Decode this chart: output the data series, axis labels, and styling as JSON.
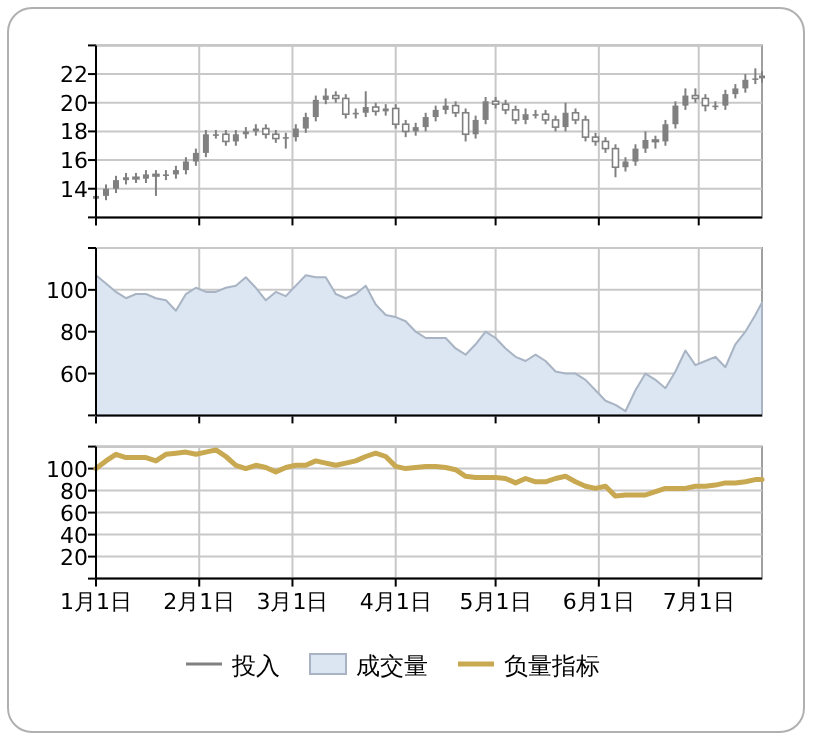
{
  "chart_data": [
    {
      "type": "candlestick",
      "x": [
        "--01-01",
        "--01-04",
        "--01-07",
        "--01-10",
        "--01-13",
        "--01-16",
        "--01-19",
        "--01-22",
        "--01-25",
        "--01-28",
        "--01-31",
        "--02-03",
        "--02-06",
        "--02-09",
        "--02-12",
        "--02-15",
        "--02-18",
        "--02-21",
        "--02-24",
        "--02-27",
        "--03-02",
        "--03-05",
        "--03-08",
        "--03-11",
        "--03-14",
        "--03-17",
        "--03-20",
        "--03-23",
        "--03-26",
        "--03-29",
        "--04-01",
        "--04-04",
        "--04-07",
        "--04-10",
        "--04-13",
        "--04-16",
        "--04-19",
        "--04-22",
        "--04-25",
        "--04-28",
        "--05-01",
        "--05-04",
        "--05-07",
        "--05-10",
        "--05-13",
        "--05-16",
        "--05-19",
        "--05-22",
        "--05-25",
        "--05-28",
        "--05-31",
        "--06-03",
        "--06-06",
        "--06-09",
        "--06-12",
        "--06-15",
        "--06-18",
        "--06-21",
        "--06-24",
        "--06-27",
        "--06-30",
        "--07-03",
        "--07-06",
        "--07-09",
        "--07-12",
        "--07-15",
        "--07-18",
        "--07-20"
      ],
      "series": [
        {
          "name": "投入",
          "color": "#808080",
          "ohlc": [
            [
              13.3,
              13.8,
              13.0,
              13.5
            ],
            [
              13.5,
              14.3,
              13.2,
              14.0
            ],
            [
              14.0,
              14.9,
              13.7,
              14.6
            ],
            [
              14.6,
              15.1,
              14.3,
              14.8
            ],
            [
              14.8,
              15.1,
              14.4,
              14.7
            ],
            [
              14.7,
              15.3,
              14.4,
              15.0
            ],
            [
              15.0,
              15.3,
              13.5,
              14.9
            ],
            [
              14.9,
              15.3,
              14.6,
              15.0
            ],
            [
              15.0,
              15.6,
              14.7,
              15.3
            ],
            [
              15.3,
              16.2,
              15.0,
              15.9
            ],
            [
              15.9,
              16.8,
              15.6,
              16.5
            ],
            [
              16.5,
              18.1,
              16.2,
              17.8
            ],
            [
              17.8,
              18.1,
              17.5,
              17.8
            ],
            [
              17.8,
              18.1,
              17.0,
              17.3
            ],
            [
              17.3,
              18.1,
              17.0,
              17.8
            ],
            [
              17.8,
              18.3,
              17.5,
              18.0
            ],
            [
              18.0,
              18.5,
              17.7,
              18.2
            ],
            [
              18.2,
              18.5,
              17.5,
              17.8
            ],
            [
              17.8,
              18.1,
              17.2,
              17.5
            ],
            [
              17.5,
              17.9,
              16.8,
              17.6
            ],
            [
              17.6,
              18.5,
              17.3,
              18.2
            ],
            [
              18.2,
              19.3,
              17.9,
              19.0
            ],
            [
              19.0,
              20.5,
              18.7,
              20.2
            ],
            [
              20.2,
              21.0,
              19.9,
              20.5
            ],
            [
              20.5,
              20.8,
              20.0,
              20.3
            ],
            [
              20.3,
              20.6,
              18.9,
              19.2
            ],
            [
              19.2,
              19.6,
              18.9,
              19.3
            ],
            [
              19.3,
              20.8,
              19.0,
              19.7
            ],
            [
              19.7,
              20.0,
              19.1,
              19.4
            ],
            [
              19.4,
              19.9,
              19.1,
              19.6
            ],
            [
              19.6,
              19.9,
              18.2,
              18.5
            ],
            [
              18.5,
              18.8,
              17.6,
              18.0
            ],
            [
              18.0,
              18.6,
              17.7,
              18.3
            ],
            [
              18.3,
              19.3,
              18.0,
              19.0
            ],
            [
              19.0,
              19.8,
              18.7,
              19.5
            ],
            [
              19.5,
              20.3,
              19.2,
              19.8
            ],
            [
              19.8,
              20.1,
              19.0,
              19.3
            ],
            [
              19.3,
              19.6,
              17.3,
              17.8
            ],
            [
              17.8,
              19.1,
              17.5,
              18.8
            ],
            [
              18.8,
              20.4,
              18.5,
              20.1
            ],
            [
              20.1,
              20.4,
              19.6,
              19.9
            ],
            [
              19.9,
              20.2,
              19.2,
              19.5
            ],
            [
              19.5,
              19.8,
              18.5,
              18.8
            ],
            [
              18.8,
              19.6,
              18.5,
              19.2
            ],
            [
              19.2,
              19.5,
              18.9,
              19.2
            ],
            [
              19.2,
              19.5,
              18.5,
              18.8
            ],
            [
              18.8,
              19.1,
              18.0,
              18.3
            ],
            [
              18.3,
              20.0,
              18.0,
              19.3
            ],
            [
              19.3,
              19.6,
              18.5,
              18.8
            ],
            [
              18.8,
              19.1,
              17.3,
              17.6
            ],
            [
              17.6,
              17.9,
              17.0,
              17.3
            ],
            [
              17.3,
              17.6,
              16.5,
              16.8
            ],
            [
              16.8,
              17.1,
              14.8,
              15.5
            ],
            [
              15.5,
              16.2,
              15.2,
              15.9
            ],
            [
              15.9,
              17.1,
              15.6,
              16.8
            ],
            [
              16.8,
              18.0,
              16.5,
              17.4
            ],
            [
              17.4,
              17.7,
              16.8,
              17.3
            ],
            [
              17.3,
              18.8,
              17.0,
              18.5
            ],
            [
              18.5,
              20.1,
              18.2,
              19.8
            ],
            [
              19.8,
              21.0,
              19.5,
              20.5
            ],
            [
              20.5,
              21.0,
              20.0,
              20.3
            ],
            [
              20.3,
              20.6,
              19.4,
              19.8
            ],
            [
              19.8,
              20.1,
              19.5,
              19.8
            ],
            [
              19.8,
              20.9,
              19.5,
              20.6
            ],
            [
              20.6,
              21.3,
              20.3,
              21.0
            ],
            [
              21.0,
              22.0,
              20.7,
              21.6
            ],
            [
              21.6,
              22.4,
              21.3,
              21.7
            ],
            [
              21.7,
              22.2,
              21.4,
              21.9
            ]
          ]
        }
      ],
      "xlim": [
        "--01-01",
        "--07-20"
      ],
      "ylim": [
        12,
        24
      ],
      "yticks": [
        {
          "value": 12,
          "label": null
        },
        14,
        16,
        18,
        20,
        22,
        {
          "value": 24,
          "label": null
        }
      ],
      "grid": true,
      "tick_labels": "y",
      "legend": "bottom"
    },
    {
      "type": "area",
      "x": [
        "--01-01",
        "--01-04",
        "--01-07",
        "--01-10",
        "--01-13",
        "--01-16",
        "--01-19",
        "--01-22",
        "--01-25",
        "--01-28",
        "--01-31",
        "--02-03",
        "--02-06",
        "--02-09",
        "--02-12",
        "--02-15",
        "--02-18",
        "--02-21",
        "--02-24",
        "--02-27",
        "--03-02",
        "--03-05",
        "--03-08",
        "--03-11",
        "--03-14",
        "--03-17",
        "--03-20",
        "--03-23",
        "--03-26",
        "--03-29",
        "--04-01",
        "--04-04",
        "--04-07",
        "--04-10",
        "--04-13",
        "--04-16",
        "--04-19",
        "--04-22",
        "--04-25",
        "--04-28",
        "--05-01",
        "--05-04",
        "--05-07",
        "--05-10",
        "--05-13",
        "--05-16",
        "--05-19",
        "--05-22",
        "--05-25",
        "--05-28",
        "--05-31",
        "--06-03",
        "--06-06",
        "--06-09",
        "--06-12",
        "--06-15",
        "--06-18",
        "--06-21",
        "--06-24",
        "--06-27",
        "--06-30",
        "--07-03",
        "--07-06",
        "--07-09",
        "--07-12",
        "--07-15",
        "--07-18",
        "--07-20"
      ],
      "series": [
        {
          "name": "成交量",
          "color": "#dce6f2",
          "values": [
            107,
            103,
            99,
            96,
            98,
            98,
            96,
            95,
            90,
            98,
            101,
            99,
            99,
            101,
            102,
            106,
            101,
            95,
            99,
            97,
            102,
            107,
            106,
            106,
            98,
            96,
            98,
            102,
            93,
            88,
            87,
            85,
            80,
            77,
            77,
            77,
            72,
            69,
            74,
            80,
            77,
            72,
            68,
            66,
            69,
            66,
            61,
            60,
            60,
            57,
            52,
            47,
            45,
            42,
            52,
            60,
            57,
            53,
            61,
            71,
            64,
            66,
            68,
            63,
            74,
            80,
            88,
            94
          ]
        }
      ],
      "xlim": [
        "--01-01",
        "--07-20"
      ],
      "ylim": [
        40,
        120
      ],
      "yticks": [
        {
          "value": 40,
          "label": null
        },
        60,
        80,
        100,
        {
          "value": 120,
          "label": null
        }
      ],
      "grid": true,
      "tick_labels": "y",
      "legend": "bottom"
    },
    {
      "type": "line",
      "x": [
        "--01-01",
        "--01-04",
        "--01-07",
        "--01-10",
        "--01-13",
        "--01-16",
        "--01-19",
        "--01-22",
        "--01-25",
        "--01-28",
        "--01-31",
        "--02-03",
        "--02-06",
        "--02-09",
        "--02-12",
        "--02-15",
        "--02-18",
        "--02-21",
        "--02-24",
        "--02-27",
        "--03-02",
        "--03-05",
        "--03-08",
        "--03-11",
        "--03-14",
        "--03-17",
        "--03-20",
        "--03-23",
        "--03-26",
        "--03-29",
        "--04-01",
        "--04-04",
        "--04-07",
        "--04-10",
        "--04-13",
        "--04-16",
        "--04-19",
        "--04-22",
        "--04-25",
        "--04-28",
        "--05-01",
        "--05-04",
        "--05-07",
        "--05-10",
        "--05-13",
        "--05-16",
        "--05-19",
        "--05-22",
        "--05-25",
        "--05-28",
        "--05-31",
        "--06-03",
        "--06-06",
        "--06-09",
        "--06-12",
        "--06-15",
        "--06-18",
        "--06-21",
        "--06-24",
        "--06-27",
        "--06-30",
        "--07-03",
        "--07-06",
        "--07-09",
        "--07-12",
        "--07-15",
        "--07-18",
        "--07-20"
      ],
      "series": [
        {
          "name": "负量指标",
          "color": "#c8a850",
          "values": [
            100,
            107,
            113,
            110,
            110,
            110,
            107,
            113,
            114,
            115,
            113,
            115,
            117,
            111,
            103,
            100,
            103,
            101,
            97,
            101,
            103,
            103,
            107,
            105,
            103,
            105,
            107,
            111,
            114,
            111,
            102,
            100,
            101,
            102,
            102,
            101,
            99,
            93,
            92,
            92,
            92,
            91,
            87,
            91,
            88,
            88,
            91,
            93,
            88,
            84,
            82,
            84,
            75,
            76,
            76,
            76,
            79,
            82,
            82,
            82,
            84,
            84,
            85,
            87,
            87,
            88,
            90,
            90
          ]
        }
      ],
      "xlim": [
        "--01-01",
        "--07-20"
      ],
      "xticks": [
        {
          "value": "--01-01",
          "label": "1月1日"
        },
        {
          "value": "--02-01",
          "label": "2月1日"
        },
        {
          "value": "--03-01",
          "label": "3月1日"
        },
        {
          "value": "--04-01",
          "label": "4月1日"
        },
        {
          "value": "--05-01",
          "label": "5月1日"
        },
        {
          "value": "--06-01",
          "label": "6月1日"
        },
        {
          "value": "--07-01",
          "label": "7月1日"
        }
      ],
      "ylim": [
        0,
        120
      ],
      "yticks": [
        {
          "value": 0,
          "label": null
        },
        20,
        40,
        60,
        80,
        100,
        {
          "value": 120,
          "label": null
        }
      ],
      "grid": true,
      "legend": "bottom",
      "line_style": "solid",
      "marker": "none"
    }
  ]
}
